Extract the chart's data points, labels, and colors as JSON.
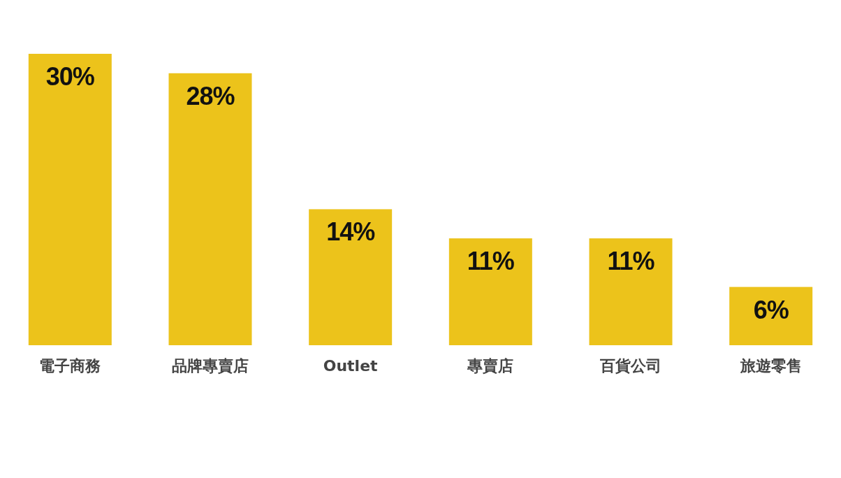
{
  "chart_data": {
    "type": "bar",
    "categories": [
      "電子商務",
      "品牌專賣店",
      "Outlet",
      "專賣店",
      "百貨公司",
      "旅遊零售"
    ],
    "values": [
      30,
      28,
      14,
      11,
      11,
      6
    ],
    "color": "#ecc31b",
    "value_labels": [
      "30%",
      "28%",
      "14%",
      "11%",
      "11%",
      "6%"
    ]
  }
}
